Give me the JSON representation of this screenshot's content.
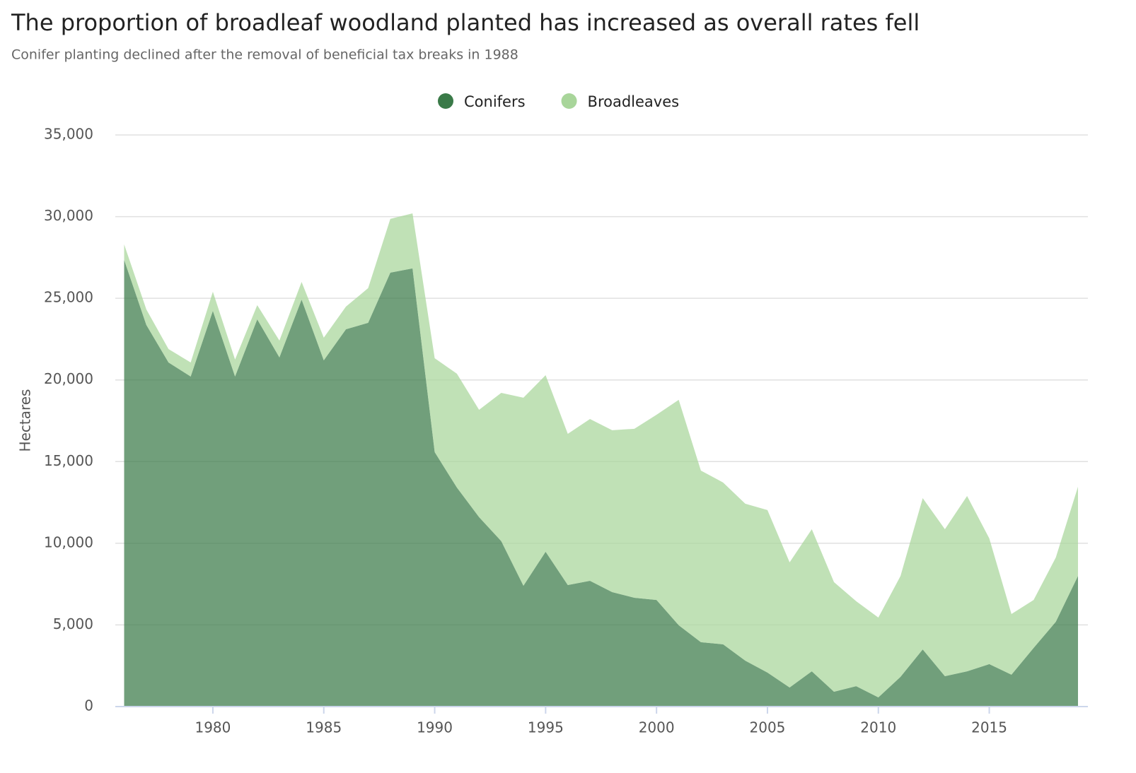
{
  "chart_data": {
    "type": "area",
    "stacked": true,
    "title": "The proportion of broadleaf woodland planted has increased as overall rates fell",
    "subtitle": "Conifer planting declined after the removal of beneficial tax breaks in 1988",
    "y_label": "Hectares",
    "x": [
      1976,
      1977,
      1978,
      1979,
      1980,
      1981,
      1982,
      1983,
      1984,
      1985,
      1986,
      1987,
      1988,
      1989,
      1990,
      1991,
      1992,
      1993,
      1994,
      1995,
      1996,
      1997,
      1998,
      1999,
      2000,
      2001,
      2002,
      2003,
      2004,
      2005,
      2006,
      2007,
      2008,
      2009,
      2010,
      2011,
      2012,
      2013,
      2014,
      2015,
      2016,
      2017,
      2018,
      2019
    ],
    "series": [
      {
        "name": "Conifers",
        "color": "#3a7a48",
        "values": [
          27350,
          23370,
          21070,
          20210,
          24230,
          20210,
          23710,
          21380,
          24920,
          21200,
          23100,
          23500,
          26570,
          26830,
          15580,
          13410,
          11600,
          10130,
          7400,
          9480,
          7440,
          7700,
          7010,
          6660,
          6530,
          4980,
          3940,
          3810,
          2810,
          2080,
          1170,
          2160,
          910,
          1250,
          560,
          1820,
          3500,
          1860,
          2160,
          2600,
          1950,
          3590,
          5190,
          8000
        ]
      },
      {
        "name": "Broadleaves",
        "color": "#a8d59a",
        "values": [
          950,
          950,
          820,
          860,
          1170,
          1040,
          870,
          1030,
          1080,
          1390,
          1390,
          2120,
          3290,
          3370,
          5750,
          6970,
          6570,
          9080,
          11510,
          10810,
          9260,
          9910,
          9910,
          10350,
          11340,
          13800,
          10510,
          9910,
          9610,
          9950,
          7660,
          8700,
          6710,
          5200,
          4890,
          6180,
          9260,
          9000,
          10730,
          7700,
          3720,
          2940,
          3940,
          5460
        ]
      }
    ],
    "xlim": [
      1976,
      2019
    ],
    "xticks": [
      1980,
      1985,
      1990,
      1995,
      2000,
      2005,
      2010,
      2015
    ],
    "ylim": [
      0,
      35000
    ],
    "yticks": [
      0,
      {
        "value": 5000,
        "label": "5,000"
      },
      {
        "value": 10000,
        "label": "10,000"
      },
      {
        "value": 15000,
        "label": "15,000"
      },
      {
        "value": 20000,
        "label": "20,000"
      },
      {
        "value": 25000,
        "label": "25,000"
      },
      {
        "value": 30000,
        "label": "30,000"
      },
      {
        "value": 35000,
        "label": "35,000"
      }
    ],
    "grid": true,
    "legend": "top"
  }
}
